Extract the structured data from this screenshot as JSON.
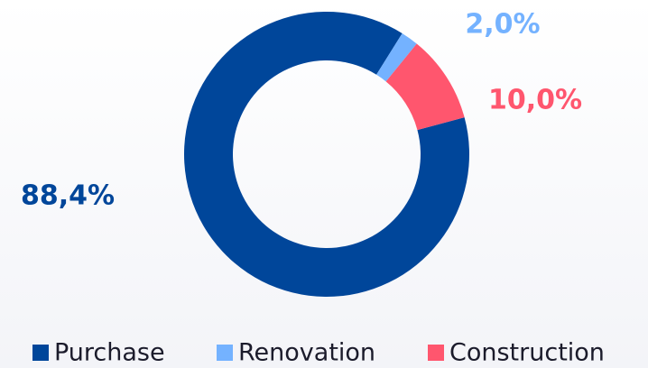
{
  "chart_data": {
    "type": "donut",
    "categories": [
      "Purchase",
      "Renovation",
      "Construction"
    ],
    "values": [
      88.4,
      2.0,
      10.0
    ],
    "value_labels": [
      "88,4%",
      "2,0%",
      "10,0%"
    ],
    "colors": [
      "#00469a",
      "#74b2ff",
      "#ff566e"
    ],
    "legend": "bottom"
  }
}
